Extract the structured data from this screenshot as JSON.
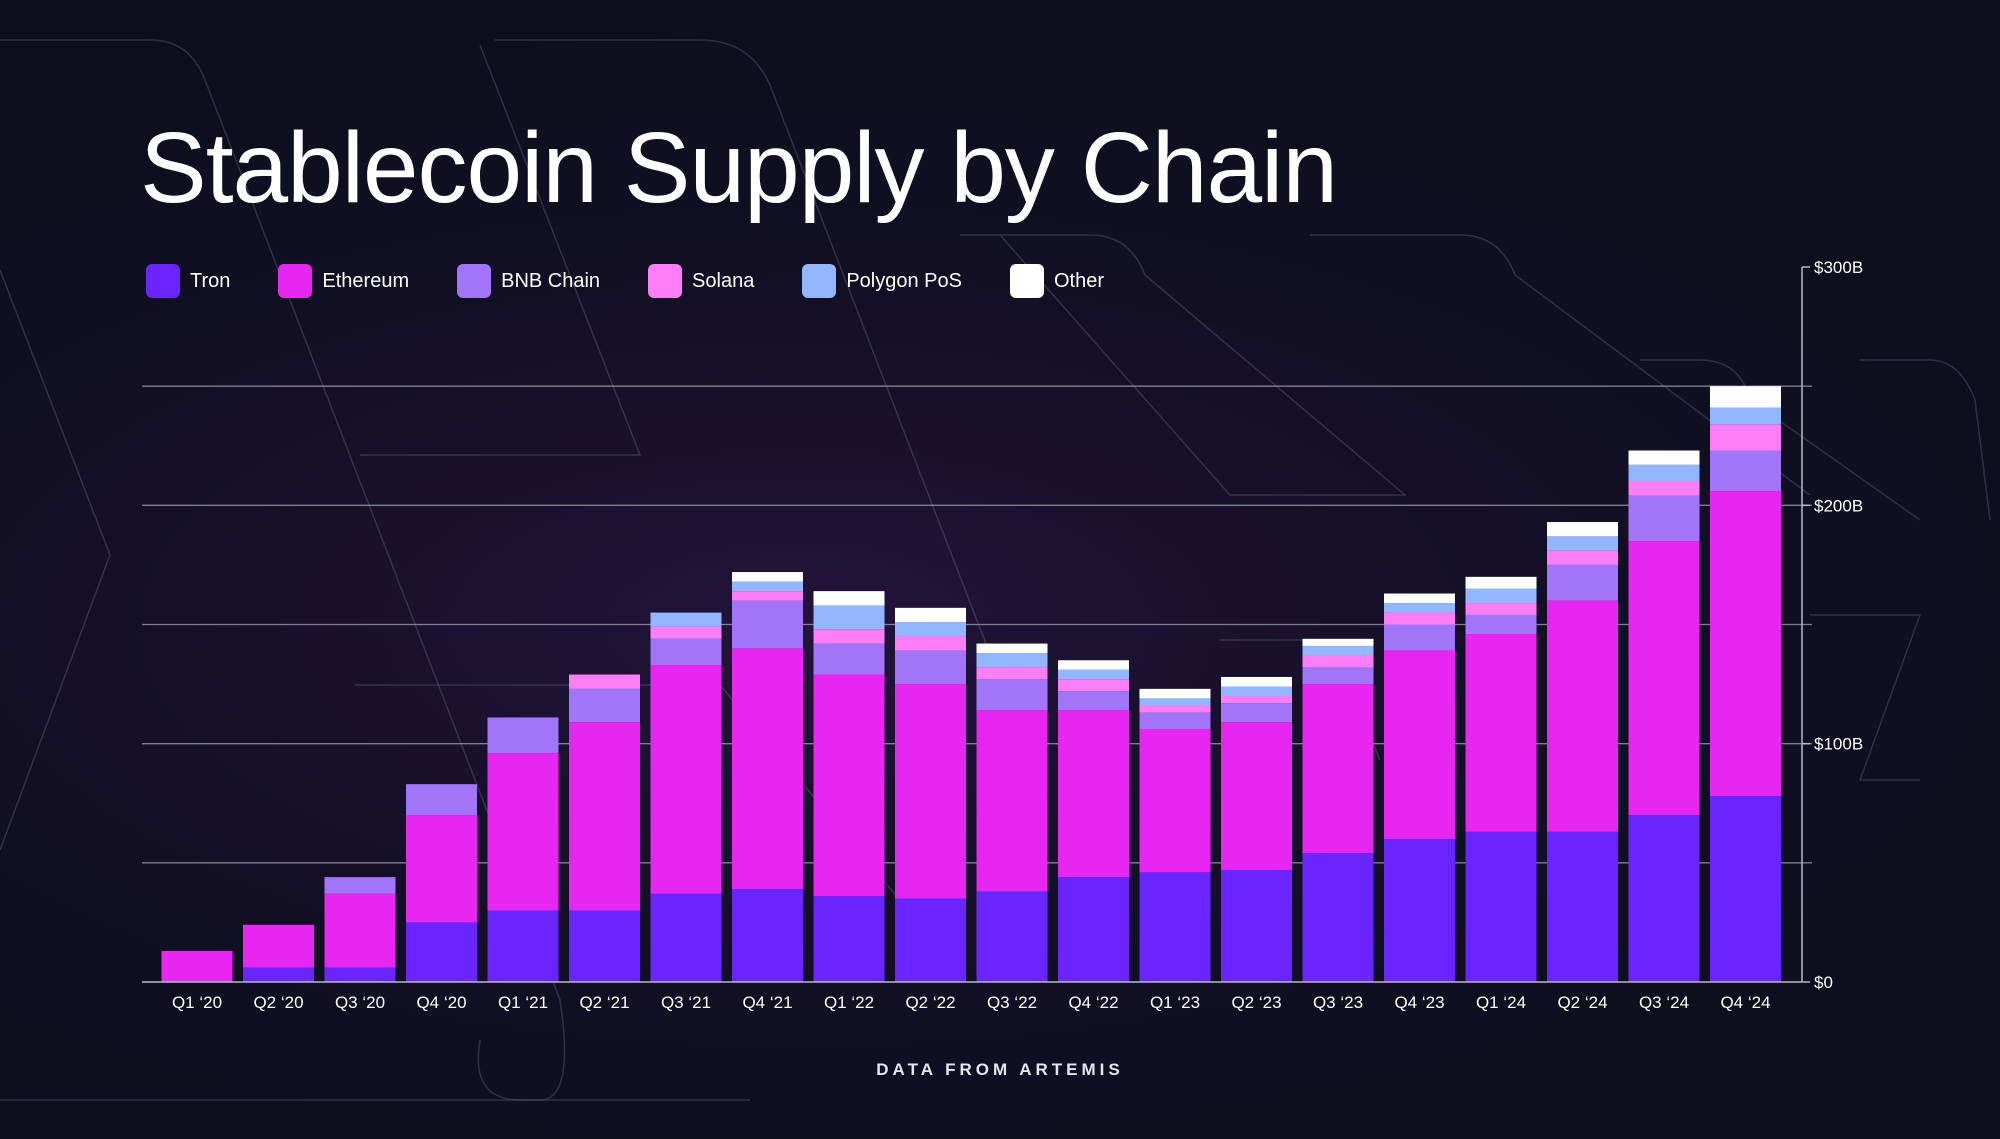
{
  "title": "Stablecoin Supply by Chain",
  "source": "DATA FROM ARTEMIS",
  "colors": {
    "background": "#0b0f1c",
    "gridline": "#9a9aae",
    "axis": "#b8b8c8"
  },
  "chart_data": {
    "type": "bar",
    "stacked": true,
    "title": "Stablecoin Supply by Chain",
    "xlabel": "",
    "ylabel": "",
    "ylim": [
      0,
      300
    ],
    "y_ticks": [
      {
        "value": 0,
        "label": "$0"
      },
      {
        "value": 100,
        "label": "$100B"
      },
      {
        "value": 200,
        "label": "$200B"
      },
      {
        "value": 300,
        "label": "$300B"
      }
    ],
    "gridlines": [
      50,
      100,
      150,
      200,
      250
    ],
    "legend_position": "top-left",
    "categories": [
      "Q1 ‘20",
      "Q2 ‘20",
      "Q3 ‘20",
      "Q4 ‘20",
      "Q1 ‘21",
      "Q2 ‘21",
      "Q3 ‘21",
      "Q4 ‘21",
      "Q1 ‘22",
      "Q2 ‘22",
      "Q3 ‘22",
      "Q4 ‘22",
      "Q1 ‘23",
      "Q2 ‘23",
      "Q3 ‘23",
      "Q4 ‘23",
      "Q1 ‘24",
      "Q2 ‘24",
      "Q3 ‘24",
      "Q4 ‘24"
    ],
    "series": [
      {
        "name": "Tron",
        "color": "#6a24fe",
        "values": [
          0,
          6,
          6,
          25,
          30,
          30,
          37,
          39,
          36,
          35,
          38,
          44,
          46,
          47,
          54,
          60,
          63,
          63,
          70,
          78
        ]
      },
      {
        "name": "Ethereum",
        "color": "#e726f2",
        "values": [
          13,
          18,
          31,
          45,
          66,
          79,
          96,
          101,
          93,
          90,
          76,
          70,
          60,
          62,
          71,
          79,
          83,
          97,
          115,
          128
        ]
      },
      {
        "name": "BNB Chain",
        "color": "#a274f7",
        "values": [
          0,
          0,
          7,
          13,
          15,
          14,
          11,
          20,
          13,
          14,
          13,
          8,
          7,
          8,
          7,
          11,
          8,
          15,
          19,
          17
        ]
      },
      {
        "name": "Solana",
        "color": "#fb7ef7",
        "values": [
          0,
          0,
          0,
          0,
          0,
          6,
          5,
          4,
          6,
          6,
          5,
          5,
          3,
          3,
          5,
          5,
          5,
          6,
          6,
          11
        ]
      },
      {
        "name": "Polygon PoS",
        "color": "#93b7ff",
        "values": [
          0,
          0,
          0,
          0,
          0,
          0,
          6,
          4,
          10,
          6,
          6,
          4,
          3,
          4,
          4,
          4,
          6,
          6,
          7,
          7
        ]
      },
      {
        "name": "Other",
        "color": "#ffffff",
        "values": [
          0,
          0,
          0,
          0,
          0,
          0,
          0,
          4,
          6,
          6,
          4,
          4,
          4,
          4,
          3,
          4,
          5,
          6,
          6,
          9
        ]
      }
    ]
  }
}
